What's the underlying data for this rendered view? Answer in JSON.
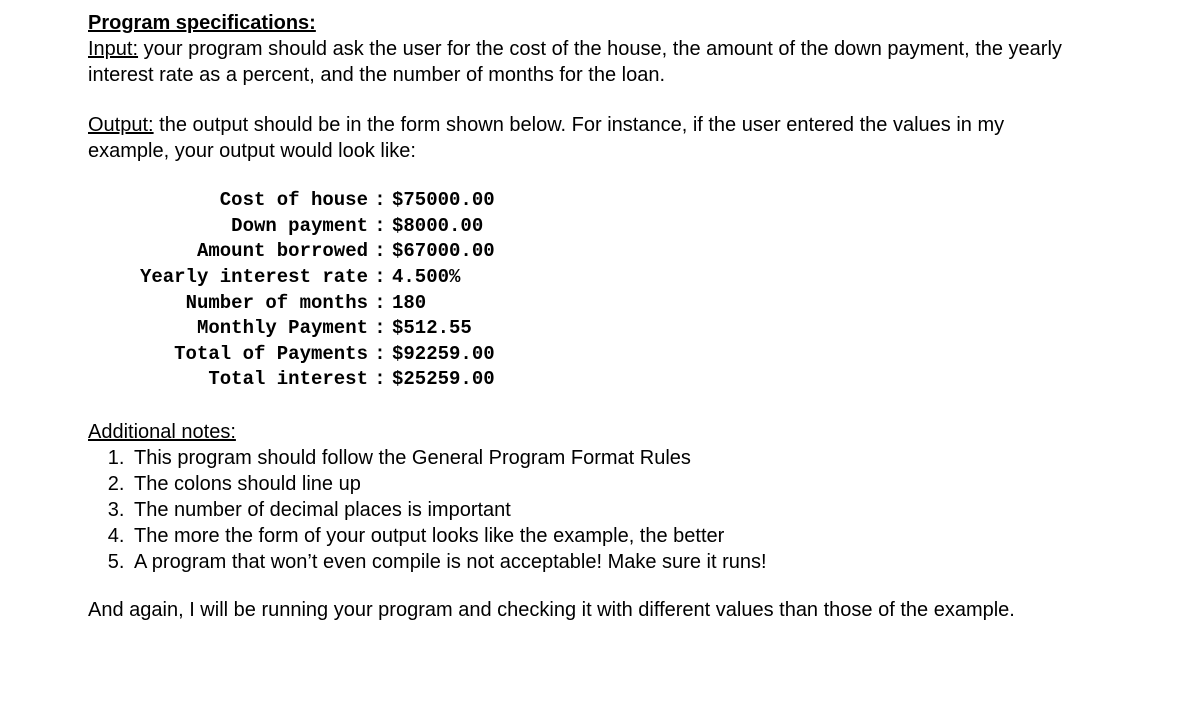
{
  "heading": "Program specifications:",
  "input_label": "Input:",
  "input_text": " your program should ask the user for the cost of the house, the amount of the down payment, the yearly interest rate as a percent, and the number of months for the loan.",
  "output_label": "Output:",
  "output_text": " the output should be in the form shown below. For instance, if the user entered the values in my example, your output would look like:",
  "output_rows": [
    {
      "label": "Cost of house",
      "value": "$75000.00"
    },
    {
      "label": "Down payment",
      "value": "$8000.00"
    },
    {
      "label": "Amount borrowed",
      "value": "$67000.00"
    },
    {
      "label": "Yearly interest rate",
      "value": "4.500%"
    },
    {
      "label": "Number of months",
      "value": "180"
    },
    {
      "label": "Monthly Payment",
      "value": "$512.55"
    },
    {
      "label": "Total of Payments",
      "value": "$92259.00"
    },
    {
      "label": "Total interest",
      "value": "$25259.00"
    }
  ],
  "notes_label": "Additional notes:",
  "notes": [
    "This program should follow the General Program Format Rules",
    "The colons should line up",
    "The number of decimal places is important",
    "The more the form of your output looks like the example, the better",
    "A program that won’t even compile is not acceptable! Make sure it runs!"
  ],
  "footer": "And again, I will be running your program and checking it with different values than those of the example.",
  "colors": {
    "text": "#000000",
    "background": "#ffffff"
  },
  "fonts": {
    "body": "Arial",
    "mono": "Courier New"
  }
}
